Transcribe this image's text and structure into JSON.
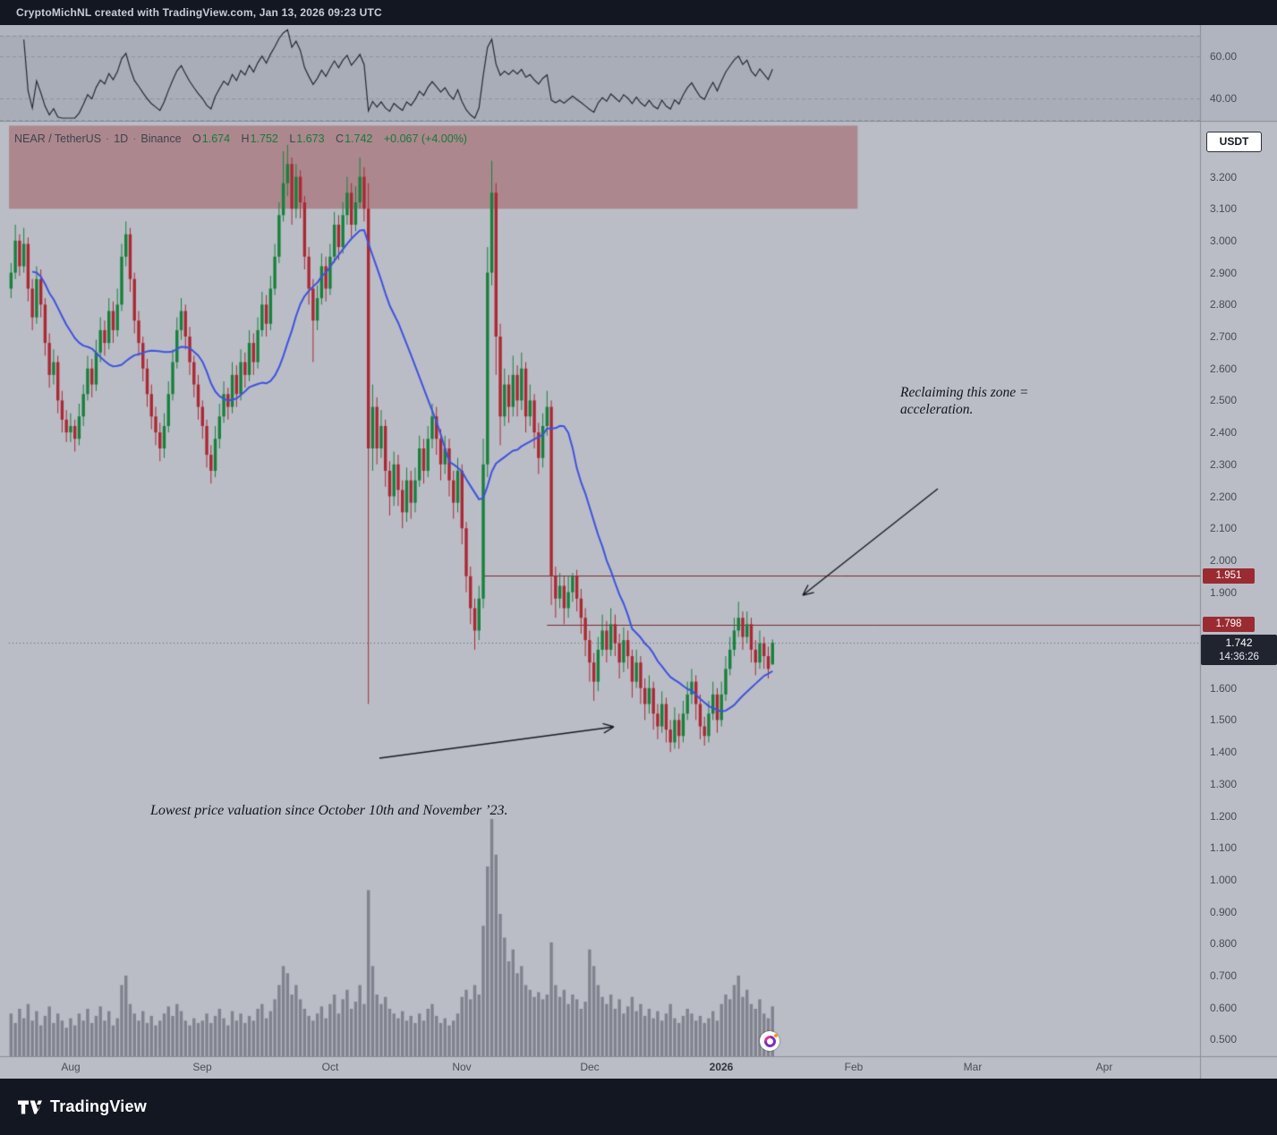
{
  "topbar": {
    "text": "CryptoMichNL created with TradingView.com, Jan 13, 2026 09:23 UTC"
  },
  "legend": {
    "symbol": "NEAR / TetherUS",
    "separator": "·",
    "interval": "1D",
    "exchange": "Binance",
    "ohlc": [
      {
        "label": "O",
        "value": "1.674"
      },
      {
        "label": "H",
        "value": "1.752"
      },
      {
        "label": "L",
        "value": "1.673"
      },
      {
        "label": "C",
        "value": "1.742"
      }
    ],
    "change": "+0.067 (+4.00%)"
  },
  "price_scale": {
    "currency_button": "USDT"
  },
  "annotations": [
    {
      "id": "reclaim",
      "text": "Reclaiming this zone =\nacceleration."
    },
    {
      "id": "lowest",
      "text": "Lowest price valuation since October 10th and November ’23."
    }
  ],
  "footer": {
    "brand": "TradingView"
  },
  "colors": {
    "pane_bg": "#babdc6",
    "up": "#17813c",
    "down": "#ac2833",
    "ma": "#3d52e0",
    "rsi_line": "#262a34",
    "level": "#7c2830",
    "zone": "rgba(150,47,53,0.38)",
    "volume": "rgba(70,74,86,0.5)",
    "badge_red": "#9a2b33",
    "badge_dark": "#20242f",
    "arrow": "#171a22",
    "separator": "#898d97"
  },
  "chart_data": {
    "type": "candlestick",
    "title": "NEAR / TetherUS · 1D · Binance",
    "ylim": [
      0.45,
      3.36
    ],
    "price_ticks": [
      "3.200",
      "3.100",
      "3.000",
      "2.900",
      "2.800",
      "2.700",
      "2.600",
      "2.500",
      "2.400",
      "2.300",
      "2.200",
      "2.100",
      "2.000",
      "1.900",
      "1.600",
      "1.500",
      "1.400",
      "1.300",
      "1.200",
      "1.100",
      "1.000",
      "0.900",
      "0.800",
      "0.700",
      "0.600",
      "0.500"
    ],
    "time_ticks": [
      {
        "label": "Aug",
        "index": 14
      },
      {
        "label": "Sep",
        "index": 45
      },
      {
        "label": "Oct",
        "index": 75
      },
      {
        "label": "Nov",
        "index": 106
      },
      {
        "label": "Dec",
        "index": 136
      },
      {
        "label": "2026",
        "index": 167,
        "bold": true
      },
      {
        "label": "Feb",
        "index": 198
      },
      {
        "label": "Mar",
        "index": 226
      },
      {
        "label": "Apr",
        "index": 257
      }
    ],
    "levels": [
      {
        "price": 1.951,
        "label": "1.951",
        "start_index": 111
      },
      {
        "price": 1.798,
        "label": "1.798",
        "start_index": 126
      }
    ],
    "current_price": {
      "value": 1.742,
      "label": "1.742",
      "countdown": "14:36:26"
    },
    "supply_zone": {
      "price_top": 3.36,
      "price_bottom": 3.1,
      "end_index": 199
    },
    "indicators": {
      "ma": {
        "period": 20
      },
      "rsi": {
        "period": 14,
        "band": [
          30,
          70
        ],
        "ticks": [
          {
            "label": "60.00",
            "value": 60
          },
          {
            "label": "40.00",
            "value": 40
          }
        ]
      }
    },
    "candles": [
      [
        2.85,
        2.93,
        2.82,
        2.9
      ],
      [
        2.9,
        3.05,
        2.88,
        3.0
      ],
      [
        3.0,
        3.02,
        2.89,
        2.92
      ],
      [
        2.92,
        3.04,
        2.9,
        2.99
      ],
      [
        2.99,
        3.01,
        2.81,
        2.85
      ],
      [
        2.85,
        2.88,
        2.72,
        2.76
      ],
      [
        2.76,
        2.92,
        2.74,
        2.88
      ],
      [
        2.88,
        2.91,
        2.76,
        2.8
      ],
      [
        2.8,
        2.82,
        2.64,
        2.68
      ],
      [
        2.68,
        2.71,
        2.54,
        2.58
      ],
      [
        2.58,
        2.66,
        2.55,
        2.62
      ],
      [
        2.62,
        2.64,
        2.46,
        2.5
      ],
      [
        2.5,
        2.53,
        2.4,
        2.44
      ],
      [
        2.44,
        2.47,
        2.37,
        2.4
      ],
      [
        2.4,
        2.46,
        2.37,
        2.42
      ],
      [
        2.42,
        2.44,
        2.34,
        2.38
      ],
      [
        2.38,
        2.49,
        2.36,
        2.45
      ],
      [
        2.45,
        2.55,
        2.42,
        2.52
      ],
      [
        2.52,
        2.64,
        2.5,
        2.6
      ],
      [
        2.6,
        2.63,
        2.51,
        2.55
      ],
      [
        2.55,
        2.69,
        2.53,
        2.65
      ],
      [
        2.65,
        2.76,
        2.62,
        2.72
      ],
      [
        2.72,
        2.75,
        2.64,
        2.68
      ],
      [
        2.68,
        2.82,
        2.66,
        2.78
      ],
      [
        2.78,
        2.81,
        2.68,
        2.72
      ],
      [
        2.72,
        2.85,
        2.7,
        2.8
      ],
      [
        2.8,
        2.99,
        2.78,
        2.95
      ],
      [
        2.95,
        3.06,
        2.92,
        3.02
      ],
      [
        3.02,
        3.04,
        2.84,
        2.88
      ],
      [
        2.88,
        2.9,
        2.71,
        2.75
      ],
      [
        2.75,
        2.78,
        2.64,
        2.68
      ],
      [
        2.68,
        2.7,
        2.56,
        2.6
      ],
      [
        2.6,
        2.63,
        2.48,
        2.52
      ],
      [
        2.52,
        2.55,
        2.41,
        2.45
      ],
      [
        2.45,
        2.48,
        2.36,
        2.4
      ],
      [
        2.4,
        2.43,
        2.31,
        2.35
      ],
      [
        2.35,
        2.46,
        2.32,
        2.42
      ],
      [
        2.42,
        2.56,
        2.4,
        2.52
      ],
      [
        2.52,
        2.66,
        2.5,
        2.62
      ],
      [
        2.62,
        2.76,
        2.6,
        2.72
      ],
      [
        2.72,
        2.82,
        2.69,
        2.78
      ],
      [
        2.78,
        2.8,
        2.66,
        2.7
      ],
      [
        2.7,
        2.73,
        2.58,
        2.62
      ],
      [
        2.62,
        2.64,
        2.51,
        2.55
      ],
      [
        2.55,
        2.58,
        2.44,
        2.48
      ],
      [
        2.48,
        2.5,
        2.38,
        2.42
      ],
      [
        2.42,
        2.44,
        2.29,
        2.33
      ],
      [
        2.33,
        2.36,
        2.24,
        2.28
      ],
      [
        2.28,
        2.42,
        2.26,
        2.38
      ],
      [
        2.38,
        2.49,
        2.35,
        2.45
      ],
      [
        2.45,
        2.56,
        2.43,
        2.52
      ],
      [
        2.52,
        2.54,
        2.44,
        2.48
      ],
      [
        2.48,
        2.62,
        2.46,
        2.58
      ],
      [
        2.58,
        2.61,
        2.48,
        2.52
      ],
      [
        2.52,
        2.66,
        2.5,
        2.62
      ],
      [
        2.62,
        2.65,
        2.54,
        2.58
      ],
      [
        2.58,
        2.72,
        2.56,
        2.68
      ],
      [
        2.68,
        2.71,
        2.58,
        2.62
      ],
      [
        2.62,
        2.76,
        2.6,
        2.72
      ],
      [
        2.72,
        2.84,
        2.7,
        2.8
      ],
      [
        2.8,
        2.83,
        2.7,
        2.74
      ],
      [
        2.74,
        2.89,
        2.72,
        2.85
      ],
      [
        2.85,
        2.99,
        2.83,
        2.95
      ],
      [
        2.95,
        3.12,
        2.93,
        3.08
      ],
      [
        3.08,
        3.28,
        3.06,
        3.18
      ],
      [
        3.18,
        3.3,
        3.14,
        3.24
      ],
      [
        3.24,
        3.26,
        3.05,
        3.1
      ],
      [
        3.1,
        3.24,
        3.07,
        3.2
      ],
      [
        3.2,
        3.22,
        3.07,
        3.12
      ],
      [
        3.12,
        3.14,
        2.91,
        2.95
      ],
      [
        2.95,
        2.98,
        2.8,
        2.85
      ],
      [
        2.85,
        2.88,
        2.62,
        2.75
      ],
      [
        2.75,
        2.86,
        2.72,
        2.82
      ],
      [
        2.82,
        2.96,
        2.8,
        2.92
      ],
      [
        2.92,
        2.95,
        2.81,
        2.85
      ],
      [
        2.85,
        2.99,
        2.83,
        2.95
      ],
      [
        2.95,
        3.09,
        2.93,
        3.05
      ],
      [
        3.05,
        3.08,
        2.94,
        2.98
      ],
      [
        2.98,
        3.12,
        2.96,
        3.08
      ],
      [
        3.08,
        3.2,
        3.05,
        3.15
      ],
      [
        3.15,
        3.18,
        3.01,
        3.05
      ],
      [
        3.05,
        3.17,
        3.03,
        3.12
      ],
      [
        3.12,
        3.26,
        3.1,
        3.2
      ],
      [
        3.2,
        3.23,
        3.06,
        3.1
      ],
      [
        3.1,
        3.18,
        1.55,
        2.35
      ],
      [
        2.35,
        2.55,
        2.28,
        2.48
      ],
      [
        2.48,
        2.51,
        2.3,
        2.35
      ],
      [
        2.35,
        2.47,
        2.32,
        2.42
      ],
      [
        2.42,
        2.44,
        2.23,
        2.28
      ],
      [
        2.28,
        2.31,
        2.14,
        2.2
      ],
      [
        2.2,
        2.34,
        2.17,
        2.3
      ],
      [
        2.3,
        2.33,
        2.17,
        2.22
      ],
      [
        2.22,
        2.25,
        2.1,
        2.15
      ],
      [
        2.15,
        2.29,
        2.12,
        2.25
      ],
      [
        2.25,
        2.28,
        2.13,
        2.18
      ],
      [
        2.18,
        2.29,
        2.15,
        2.25
      ],
      [
        2.25,
        2.39,
        2.23,
        2.35
      ],
      [
        2.35,
        2.38,
        2.24,
        2.28
      ],
      [
        2.28,
        2.42,
        2.26,
        2.38
      ],
      [
        2.38,
        2.49,
        2.35,
        2.45
      ],
      [
        2.45,
        2.48,
        2.33,
        2.38
      ],
      [
        2.38,
        2.41,
        2.25,
        2.3
      ],
      [
        2.3,
        2.39,
        2.27,
        2.35
      ],
      [
        2.35,
        2.38,
        2.2,
        2.25
      ],
      [
        2.25,
        2.28,
        2.13,
        2.18
      ],
      [
        2.18,
        2.32,
        2.15,
        2.28
      ],
      [
        2.28,
        2.3,
        2.05,
        2.1
      ],
      [
        2.1,
        2.12,
        1.9,
        1.95
      ],
      [
        1.95,
        1.98,
        1.8,
        1.85
      ],
      [
        1.85,
        1.88,
        1.72,
        1.78
      ],
      [
        1.78,
        1.92,
        1.75,
        1.88
      ],
      [
        1.88,
        2.38,
        1.85,
        2.3
      ],
      [
        2.3,
        2.98,
        2.26,
        2.9
      ],
      [
        2.9,
        3.25,
        2.86,
        3.15
      ],
      [
        3.15,
        3.18,
        2.58,
        2.7
      ],
      [
        2.7,
        2.74,
        2.36,
        2.45
      ],
      [
        2.45,
        2.6,
        2.42,
        2.55
      ],
      [
        2.55,
        2.58,
        2.43,
        2.48
      ],
      [
        2.48,
        2.64,
        2.45,
        2.58
      ],
      [
        2.58,
        2.61,
        2.45,
        2.5
      ],
      [
        2.5,
        2.65,
        2.47,
        2.6
      ],
      [
        2.6,
        2.62,
        2.4,
        2.45
      ],
      [
        2.45,
        2.55,
        2.42,
        2.5
      ],
      [
        2.5,
        2.52,
        2.35,
        2.4
      ],
      [
        2.4,
        2.43,
        2.27,
        2.32
      ],
      [
        2.32,
        2.46,
        2.29,
        2.42
      ],
      [
        2.42,
        2.53,
        2.39,
        2.48
      ],
      [
        2.48,
        2.5,
        1.86,
        1.95
      ],
      [
        1.95,
        1.98,
        1.82,
        1.88
      ],
      [
        1.88,
        1.96,
        1.85,
        1.92
      ],
      [
        1.92,
        1.95,
        1.8,
        1.85
      ],
      [
        1.85,
        1.95,
        1.82,
        1.9
      ],
      [
        1.9,
        1.96,
        1.87,
        1.95
      ],
      [
        1.95,
        1.97,
        1.84,
        1.88
      ],
      [
        1.88,
        1.91,
        1.77,
        1.82
      ],
      [
        1.82,
        1.85,
        1.7,
        1.75
      ],
      [
        1.75,
        1.78,
        1.62,
        1.68
      ],
      [
        1.68,
        1.71,
        1.56,
        1.62
      ],
      [
        1.62,
        1.76,
        1.59,
        1.72
      ],
      [
        1.72,
        1.83,
        1.7,
        1.78
      ],
      [
        1.78,
        1.81,
        1.68,
        1.72
      ],
      [
        1.72,
        1.85,
        1.7,
        1.8
      ],
      [
        1.8,
        1.83,
        1.7,
        1.74
      ],
      [
        1.74,
        1.77,
        1.63,
        1.68
      ],
      [
        1.68,
        1.79,
        1.65,
        1.75
      ],
      [
        1.75,
        1.78,
        1.66,
        1.7
      ],
      [
        1.7,
        1.72,
        1.57,
        1.62
      ],
      [
        1.62,
        1.72,
        1.6,
        1.68
      ],
      [
        1.68,
        1.7,
        1.55,
        1.6
      ],
      [
        1.6,
        1.63,
        1.5,
        1.55
      ],
      [
        1.55,
        1.64,
        1.52,
        1.6
      ],
      [
        1.6,
        1.62,
        1.47,
        1.52
      ],
      [
        1.52,
        1.55,
        1.44,
        1.48
      ],
      [
        1.48,
        1.59,
        1.46,
        1.55
      ],
      [
        1.55,
        1.57,
        1.43,
        1.47
      ],
      [
        1.47,
        1.5,
        1.4,
        1.43
      ],
      [
        1.43,
        1.54,
        1.41,
        1.5
      ],
      [
        1.5,
        1.52,
        1.41,
        1.45
      ],
      [
        1.45,
        1.56,
        1.43,
        1.52
      ],
      [
        1.52,
        1.62,
        1.5,
        1.58
      ],
      [
        1.58,
        1.66,
        1.55,
        1.62
      ],
      [
        1.62,
        1.64,
        1.5,
        1.55
      ],
      [
        1.55,
        1.58,
        1.44,
        1.48
      ],
      [
        1.48,
        1.51,
        1.42,
        1.45
      ],
      [
        1.45,
        1.56,
        1.43,
        1.52
      ],
      [
        1.52,
        1.62,
        1.5,
        1.58
      ],
      [
        1.58,
        1.6,
        1.46,
        1.5
      ],
      [
        1.5,
        1.62,
        1.48,
        1.58
      ],
      [
        1.58,
        1.7,
        1.56,
        1.66
      ],
      [
        1.66,
        1.76,
        1.64,
        1.72
      ],
      [
        1.72,
        1.82,
        1.7,
        1.78
      ],
      [
        1.78,
        1.87,
        1.76,
        1.82
      ],
      [
        1.82,
        1.84,
        1.72,
        1.76
      ],
      [
        1.76,
        1.84,
        1.74,
        1.8
      ],
      [
        1.8,
        1.82,
        1.68,
        1.72
      ],
      [
        1.72,
        1.75,
        1.64,
        1.68
      ],
      [
        1.68,
        1.78,
        1.66,
        1.74
      ],
      [
        1.74,
        1.76,
        1.66,
        1.7
      ],
      [
        1.7,
        1.73,
        1.63,
        1.66
      ],
      [
        1.674,
        1.752,
        1.673,
        1.742
      ]
    ],
    "volume": [
      0.18,
      0.14,
      0.2,
      0.16,
      0.22,
      0.15,
      0.19,
      0.13,
      0.17,
      0.21,
      0.14,
      0.18,
      0.15,
      0.12,
      0.16,
      0.13,
      0.18,
      0.15,
      0.2,
      0.14,
      0.17,
      0.21,
      0.15,
      0.19,
      0.13,
      0.16,
      0.3,
      0.34,
      0.22,
      0.18,
      0.15,
      0.19,
      0.14,
      0.17,
      0.13,
      0.15,
      0.18,
      0.21,
      0.17,
      0.22,
      0.19,
      0.15,
      0.13,
      0.16,
      0.14,
      0.15,
      0.18,
      0.14,
      0.17,
      0.2,
      0.16,
      0.13,
      0.19,
      0.15,
      0.18,
      0.14,
      0.17,
      0.15,
      0.2,
      0.22,
      0.16,
      0.19,
      0.24,
      0.3,
      0.38,
      0.35,
      0.26,
      0.3,
      0.24,
      0.2,
      0.17,
      0.15,
      0.18,
      0.21,
      0.16,
      0.22,
      0.26,
      0.18,
      0.24,
      0.28,
      0.2,
      0.23,
      0.3,
      0.22,
      0.7,
      0.38,
      0.26,
      0.22,
      0.25,
      0.2,
      0.18,
      0.16,
      0.19,
      0.15,
      0.17,
      0.14,
      0.18,
      0.15,
      0.2,
      0.22,
      0.17,
      0.14,
      0.16,
      0.13,
      0.15,
      0.18,
      0.25,
      0.28,
      0.24,
      0.3,
      0.26,
      0.55,
      0.8,
      1.0,
      0.85,
      0.6,
      0.5,
      0.4,
      0.45,
      0.35,
      0.38,
      0.3,
      0.28,
      0.25,
      0.27,
      0.24,
      0.26,
      0.48,
      0.3,
      0.25,
      0.28,
      0.22,
      0.26,
      0.24,
      0.2,
      0.23,
      0.45,
      0.38,
      0.3,
      0.25,
      0.22,
      0.26,
      0.2,
      0.24,
      0.18,
      0.21,
      0.25,
      0.19,
      0.22,
      0.17,
      0.2,
      0.16,
      0.19,
      0.15,
      0.18,
      0.22,
      0.16,
      0.14,
      0.17,
      0.2,
      0.18,
      0.15,
      0.17,
      0.14,
      0.16,
      0.19,
      0.15,
      0.22,
      0.26,
      0.24,
      0.3,
      0.34,
      0.25,
      0.28,
      0.22,
      0.2,
      0.24,
      0.18,
      0.16,
      0.21
    ]
  }
}
